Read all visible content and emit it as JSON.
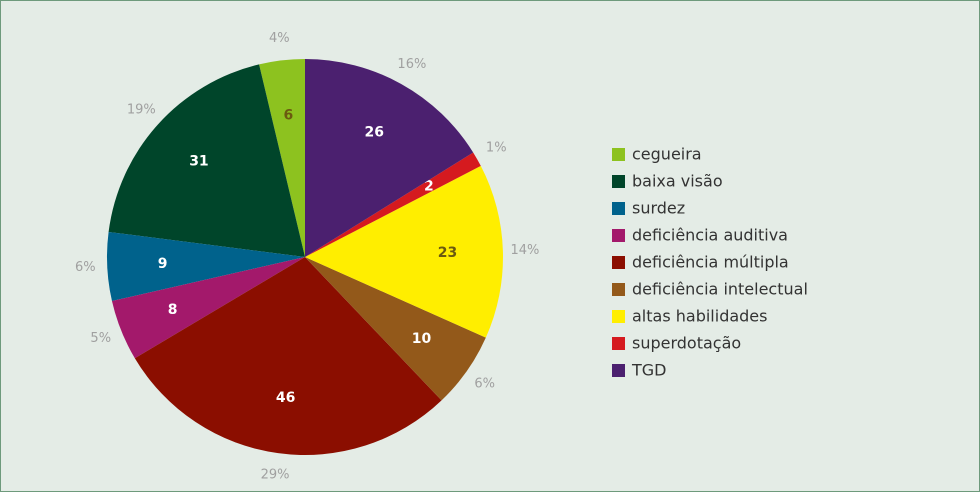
{
  "chart_data": {
    "type": "pie",
    "categories": [
      "cegueira",
      "baixa visão",
      "surdez",
      "deficiência auditiva",
      "deficiência múltipla",
      "deficiência intelectual",
      "altas habilidades",
      "superdotação",
      "TGD"
    ],
    "values": [
      6,
      31,
      9,
      8,
      46,
      10,
      23,
      2,
      26
    ],
    "percent_labels": [
      "4%",
      "19%",
      "6%",
      "5%",
      "29%",
      "6%",
      "14%",
      "1%",
      "16%"
    ],
    "colors": [
      "#8dc21f",
      "#00452a",
      "#00628c",
      "#a3196b",
      "#8b0e00",
      "#93591a",
      "#ffee00",
      "#d51a1f",
      "#4b206f"
    ],
    "legend": "right"
  }
}
